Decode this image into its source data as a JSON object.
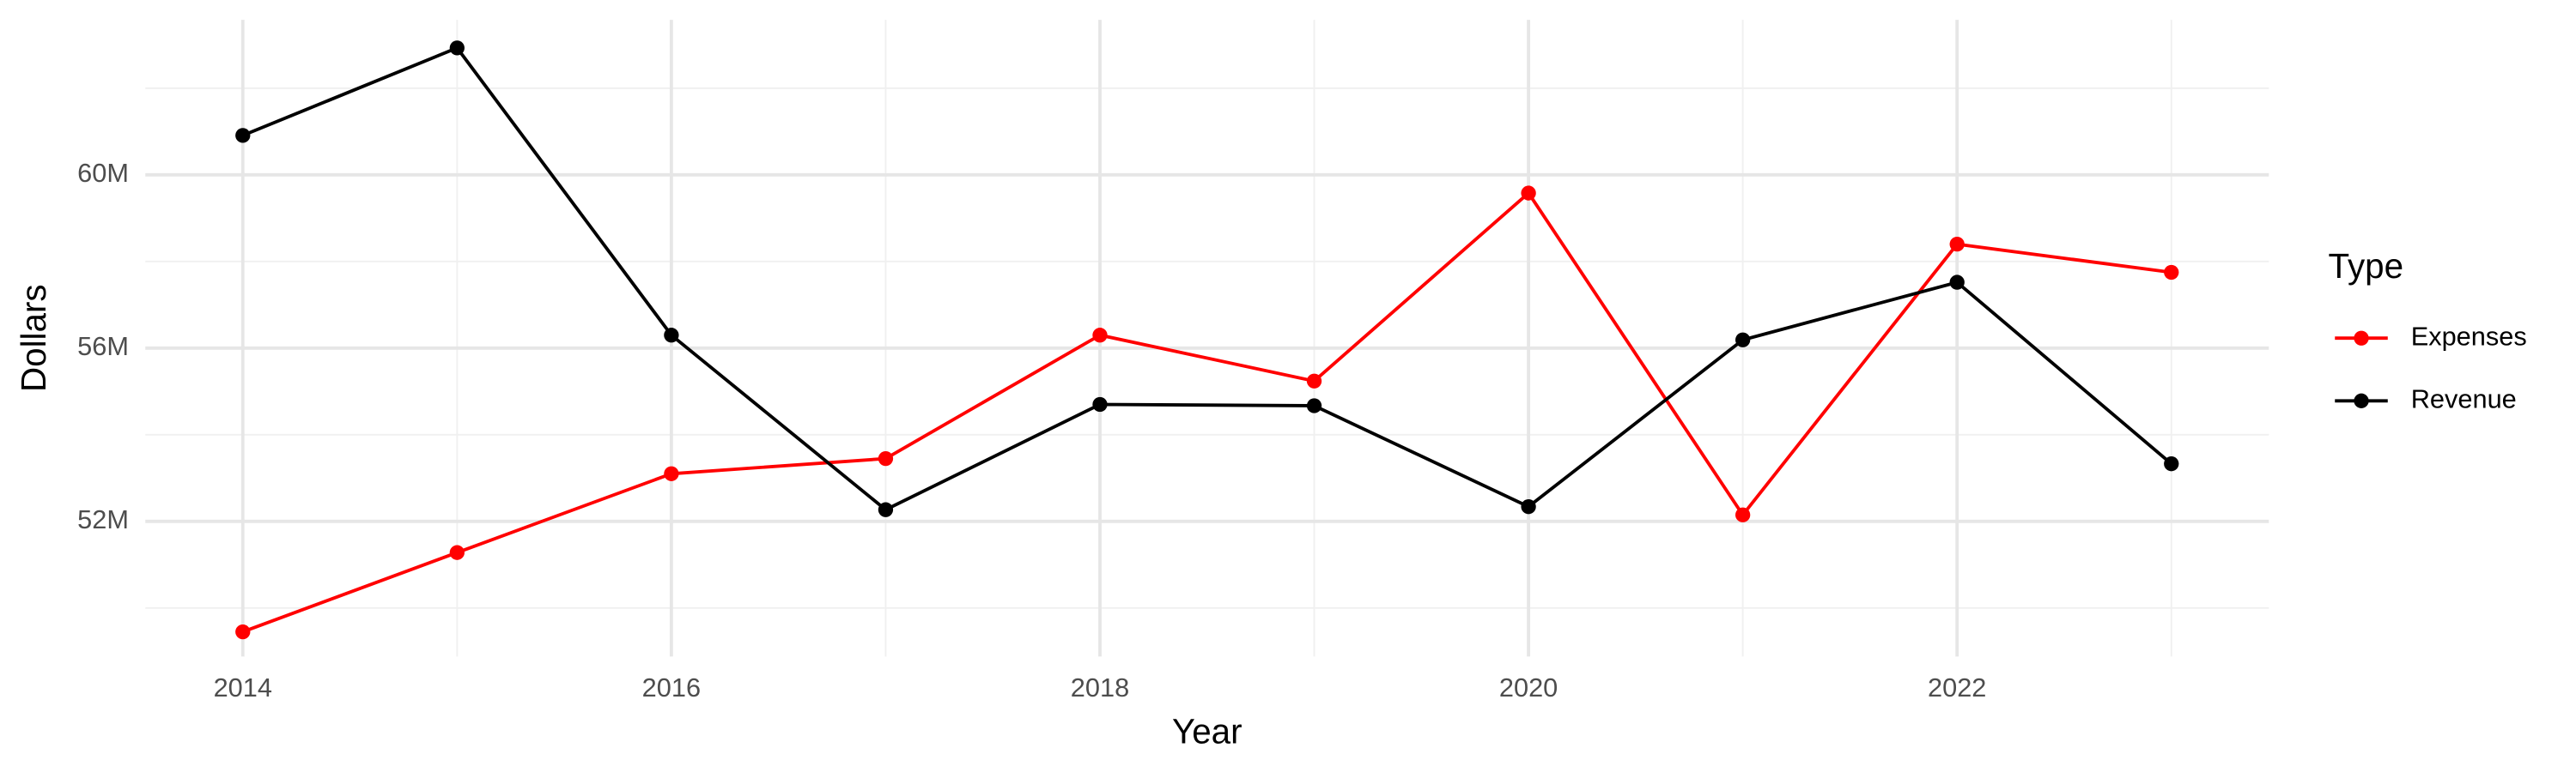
{
  "chart_data": {
    "type": "line",
    "x": [
      2014,
      2015,
      2016,
      2017,
      2018,
      2019,
      2020,
      2021,
      2022,
      2023
    ],
    "series": [
      {
        "name": "Expenses",
        "color": "#ff0000",
        "values": [
          49450000,
          51280000,
          53100000,
          53450000,
          56300000,
          55240000,
          59580000,
          52150000,
          58400000,
          57750000
        ]
      },
      {
        "name": "Revenue",
        "color": "#000000",
        "values": [
          60910000,
          62930000,
          56300000,
          52270000,
          54700000,
          54670000,
          52340000,
          56190000,
          57520000,
          53330000
        ]
      }
    ],
    "x_label": "Year",
    "y_label": "Dollars",
    "legend_title": "Type",
    "legend_position": "right",
    "xlim": [
      2013.545,
      2023.455
    ],
    "xticks": [
      2014,
      2016,
      2018,
      2020,
      2022
    ],
    "xminorticks": [
      2015,
      2017,
      2019,
      2021,
      2023
    ],
    "ylim": [
      48880000,
      63580000
    ],
    "yticks": [
      {
        "value": 52000000,
        "label": "52M"
      },
      {
        "value": 56000000,
        "label": "56M"
      },
      {
        "value": 60000000,
        "label": "60M"
      }
    ],
    "yminorticks": [
      50000000,
      54000000,
      58000000,
      62000000
    ],
    "grid": true
  }
}
